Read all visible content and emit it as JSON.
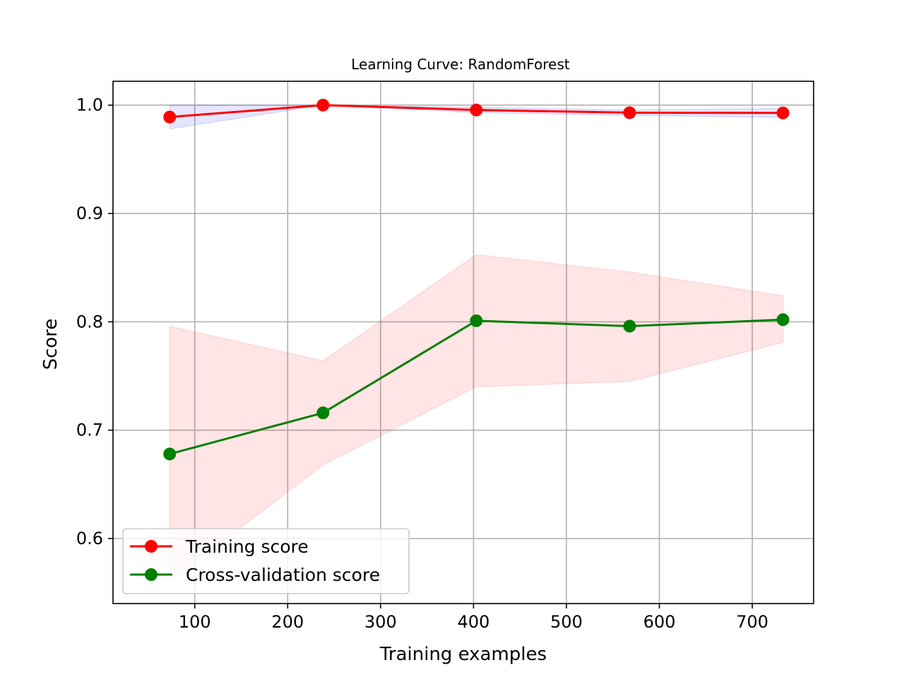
{
  "chart_data": {
    "type": "line",
    "title": "Learning Curve: RandomForest",
    "xlabel": "Training examples",
    "ylabel": "Score",
    "xlim": [
      12,
      766
    ],
    "ylim": [
      0.54,
      1.022
    ],
    "x_ticks": [
      100,
      200,
      300,
      400,
      500,
      600,
      700
    ],
    "y_ticks": [
      0.6,
      0.7,
      0.8,
      0.9,
      1.0
    ],
    "x_tick_labels": [
      "100",
      "200",
      "300",
      "400",
      "500",
      "600",
      "700"
    ],
    "y_tick_labels": [
      "0.6",
      "0.7",
      "0.8",
      "0.9",
      "1.0"
    ],
    "grid": true,
    "legend_position": "lower-left",
    "x": [
      73,
      238,
      403,
      568,
      733
    ],
    "series": [
      {
        "name": "Training score",
        "color": "#ff0000",
        "values": [
          0.989,
          1.0,
          0.9955,
          0.993,
          0.9928
        ],
        "band_lower": [
          0.978,
          1.0,
          0.993,
          0.9905,
          0.9885
        ],
        "band_upper": [
          1.0,
          1.0,
          0.998,
          0.9955,
          0.997
        ],
        "band_color": "#0000ff",
        "band_opacity": 0.1
      },
      {
        "name": "Cross-validation score",
        "color": "#008000",
        "values": [
          0.678,
          0.716,
          0.801,
          0.796,
          0.802
        ],
        "band_lower": [
          0.56,
          0.668,
          0.74,
          0.745,
          0.781
        ],
        "band_upper": [
          0.796,
          0.764,
          0.862,
          0.846,
          0.824
        ],
        "band_color": "#ff0000",
        "band_opacity": 0.1
      }
    ]
  }
}
